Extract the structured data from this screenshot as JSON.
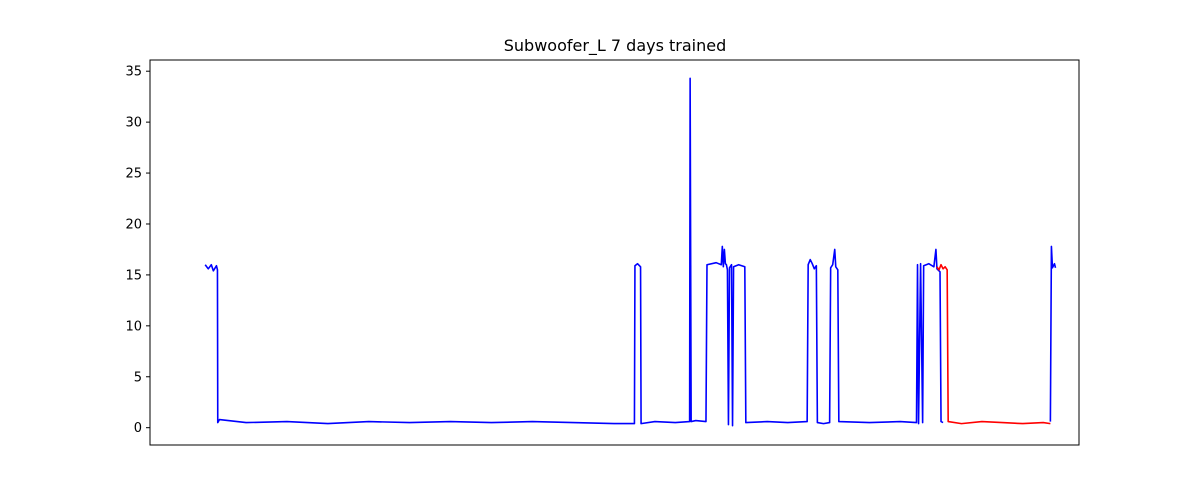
{
  "chart_data": {
    "type": "line",
    "title": "Subwoofer_L 7 days trained",
    "xlabel": "",
    "ylabel": "",
    "x_ticks_visible": false,
    "xlim": [
      -54,
      855
    ],
    "ylim": [
      -1.7,
      36.1
    ],
    "yticks": [
      0,
      5,
      10,
      15,
      20,
      25,
      30,
      35
    ],
    "ytick_labels": [
      "0",
      "5",
      "10",
      "15",
      "20",
      "25",
      "30",
      "35"
    ],
    "grid": false,
    "legend": "none",
    "series": [
      {
        "color": "#0000ff",
        "points": [
          [
            0,
            16.0
          ],
          [
            3,
            15.6
          ],
          [
            6,
            16.0
          ],
          [
            8,
            15.4
          ],
          [
            11,
            15.9
          ],
          [
            12,
            15.5
          ],
          [
            12.3,
            0.5
          ],
          [
            14,
            0.8
          ],
          [
            40,
            0.5
          ],
          [
            80,
            0.6
          ],
          [
            120,
            0.4
          ],
          [
            160,
            0.6
          ],
          [
            200,
            0.5
          ],
          [
            240,
            0.6
          ],
          [
            280,
            0.5
          ],
          [
            320,
            0.6
          ],
          [
            360,
            0.5
          ],
          [
            400,
            0.4
          ],
          [
            420,
            0.4
          ],
          [
            420.5,
            15.9
          ],
          [
            423,
            16.1
          ],
          [
            426,
            15.8
          ],
          [
            426.5,
            0.4
          ],
          [
            440,
            0.6
          ],
          [
            460,
            0.5
          ],
          [
            474,
            0.6
          ],
          [
            474.5,
            34.3
          ],
          [
            475.5,
            0.6
          ],
          [
            480,
            0.7
          ],
          [
            490,
            0.6
          ],
          [
            491,
            16.0
          ],
          [
            500,
            16.2
          ],
          [
            505,
            16.0
          ],
          [
            506,
            17.8
          ],
          [
            507,
            15.8
          ],
          [
            508,
            17.5
          ],
          [
            509,
            16.1
          ],
          [
            510,
            16.0
          ],
          [
            511,
            15.5
          ],
          [
            512,
            0.3
          ],
          [
            513,
            15.7
          ],
          [
            515,
            16.0
          ],
          [
            516,
            0.2
          ],
          [
            517,
            15.8
          ],
          [
            522,
            16.0
          ],
          [
            528,
            15.8
          ],
          [
            529,
            0.5
          ],
          [
            550,
            0.6
          ],
          [
            570,
            0.5
          ],
          [
            589,
            0.6
          ],
          [
            590,
            16.0
          ],
          [
            592,
            16.5
          ],
          [
            594,
            16.1
          ],
          [
            596,
            15.6
          ],
          [
            598,
            15.9
          ],
          [
            599,
            0.5
          ],
          [
            605,
            0.4
          ],
          [
            611,
            0.5
          ],
          [
            612,
            15.7
          ],
          [
            614,
            16.0
          ],
          [
            616,
            17.5
          ],
          [
            617,
            15.8
          ],
          [
            619,
            15.5
          ],
          [
            620,
            0.6
          ],
          [
            650,
            0.5
          ],
          [
            680,
            0.6
          ],
          [
            696,
            0.5
          ],
          [
            697,
            16.0
          ],
          [
            698,
            0.4
          ],
          [
            700,
            16.1
          ],
          [
            702,
            0.5
          ],
          [
            703,
            15.9
          ],
          [
            708,
            16.1
          ],
          [
            713,
            15.8
          ],
          [
            715,
            17.5
          ],
          [
            716,
            15.6
          ],
          [
            719,
            15.3
          ],
          [
            720,
            0.6
          ],
          [
            722,
            0.5
          ]
        ]
      },
      {
        "color": "#ff0000",
        "points": [
          [
            716,
            15.8
          ],
          [
            718,
            15.5
          ],
          [
            720,
            16.0
          ],
          [
            722,
            15.6
          ],
          [
            724,
            15.8
          ],
          [
            726,
            15.5
          ],
          [
            727,
            0.6
          ],
          [
            740,
            0.4
          ],
          [
            760,
            0.6
          ],
          [
            780,
            0.5
          ],
          [
            800,
            0.4
          ],
          [
            820,
            0.5
          ],
          [
            827,
            0.4
          ]
        ]
      },
      {
        "color": "#0000ff",
        "points": [
          [
            827,
            0.6
          ],
          [
            828,
            17.8
          ],
          [
            829,
            15.7
          ],
          [
            831,
            16.1
          ],
          [
            832,
            15.7
          ]
        ]
      }
    ]
  }
}
